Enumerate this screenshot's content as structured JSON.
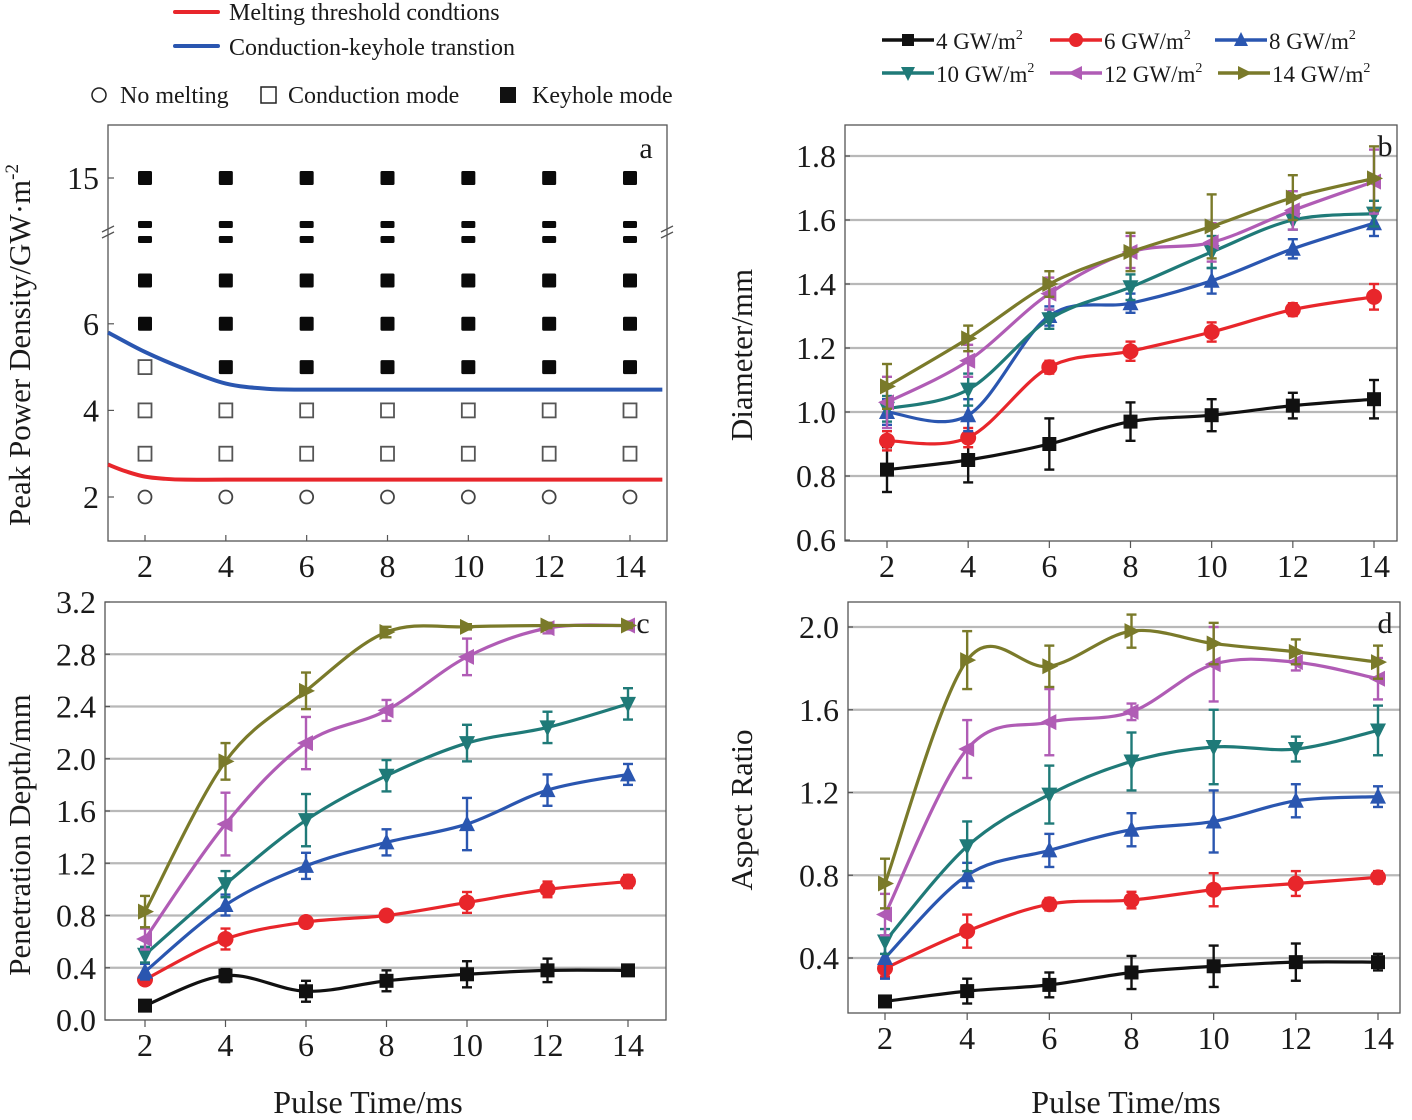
{
  "legend_top_left": {
    "lines": [
      {
        "label": "Melting threshold condtions",
        "color": "#e8262b"
      },
      {
        "label": "Conduction-keyhole transtion",
        "color": "#2a56b0"
      }
    ],
    "markers": [
      {
        "label": "No melting",
        "symbol": "open-circle"
      },
      {
        "label": "Conduction mode",
        "symbol": "open-square"
      },
      {
        "label": "Keyhole mode",
        "symbol": "filled-square"
      }
    ]
  },
  "legend_top_right": {
    "entries": [
      {
        "label": "4 GW/m",
        "sup": "2",
        "color": "#111111",
        "symbol": "square"
      },
      {
        "label": "6 GW/m",
        "sup": "2",
        "color": "#e8262b",
        "symbol": "circle"
      },
      {
        "label": "8 GW/m",
        "sup": "2",
        "color": "#2a56b0",
        "symbol": "triangle-up"
      },
      {
        "label": "10 GW/m",
        "sup": "2",
        "color": "#1f7a78",
        "symbol": "triangle-down"
      },
      {
        "label": "12 GW/m",
        "sup": "2",
        "color": "#b05cb5",
        "symbol": "triangle-left"
      },
      {
        "label": "14 GW/m",
        "sup": "2",
        "color": "#7a7a2a",
        "symbol": "triangle-right"
      }
    ]
  },
  "chart_data": [
    {
      "id": "a",
      "panel_label": "a",
      "type": "scatter",
      "title": "",
      "xlabel": "",
      "ylabel": "Peak Power Density/GW·m",
      "ylabel_sup": "-2",
      "x_ticks": [
        2,
        4,
        6,
        8,
        10,
        12,
        14
      ],
      "y_ticks": [
        2,
        4,
        6,
        15
      ],
      "y_axis_break": true,
      "xlim": [
        1,
        14.8
      ],
      "grid": false,
      "points": {
        "x": [
          2,
          4,
          6,
          8,
          10,
          12,
          14
        ],
        "rows": [
          {
            "y": 2,
            "modes": [
              "none",
              "none",
              "none",
              "none",
              "none",
              "none",
              "none"
            ]
          },
          {
            "y": 3,
            "modes": [
              "conduction",
              "conduction",
              "conduction",
              "conduction",
              "conduction",
              "conduction",
              "conduction"
            ]
          },
          {
            "y": 4,
            "modes": [
              "conduction",
              "conduction",
              "conduction",
              "conduction",
              "conduction",
              "conduction",
              "conduction"
            ]
          },
          {
            "y": 5,
            "modes": [
              "conduction",
              "keyhole",
              "keyhole",
              "keyhole",
              "keyhole",
              "keyhole",
              "keyhole"
            ]
          },
          {
            "y": 6,
            "modes": [
              "keyhole",
              "keyhole",
              "keyhole",
              "keyhole",
              "keyhole",
              "keyhole",
              "keyhole"
            ]
          },
          {
            "y": 7,
            "modes": [
              "keyhole",
              "keyhole",
              "keyhole",
              "keyhole",
              "keyhole",
              "keyhole",
              "keyhole"
            ]
          },
          {
            "y": 8,
            "modes": [
              "keyhole-pair",
              "keyhole-pair",
              "keyhole-pair",
              "keyhole-pair",
              "keyhole-pair",
              "keyhole-pair",
              "keyhole-pair"
            ]
          },
          {
            "y": 15,
            "modes": [
              "keyhole",
              "keyhole",
              "keyhole",
              "keyhole",
              "keyhole",
              "keyhole",
              "keyhole"
            ]
          }
        ]
      },
      "curves": [
        {
          "name": "Melting threshold condtions",
          "color": "#e8262b",
          "x": [
            1,
            1.5,
            2,
            2.5,
            3,
            4,
            6,
            8,
            10,
            12,
            14.8
          ],
          "y": [
            2.75,
            2.6,
            2.47,
            2.42,
            2.4,
            2.4,
            2.4,
            2.4,
            2.4,
            2.4,
            2.4
          ]
        },
        {
          "name": "Conduction-keyhole transtion",
          "color": "#2a56b0",
          "x": [
            1,
            2,
            3,
            4,
            5,
            6,
            8,
            10,
            12,
            14.8
          ],
          "y": [
            5.8,
            5.35,
            4.95,
            4.62,
            4.5,
            4.48,
            4.48,
            4.48,
            4.48,
            4.48
          ]
        }
      ]
    },
    {
      "id": "b",
      "panel_label": "b",
      "type": "line",
      "title": "",
      "xlabel": "",
      "ylabel": "Diameter/mm",
      "x": [
        2,
        4,
        6,
        8,
        10,
        12,
        14
      ],
      "x_ticks": [
        2,
        4,
        6,
        8,
        10,
        12,
        14
      ],
      "y_ticks": [
        0.6,
        0.8,
        1.0,
        1.2,
        1.4,
        1.6,
        1.8
      ],
      "ylim": [
        0.6,
        1.9
      ],
      "grid": true,
      "series": [
        {
          "name": "4 GW/m2",
          "values": [
            0.82,
            0.85,
            0.9,
            0.97,
            0.99,
            1.02,
            1.04
          ],
          "err": [
            0.07,
            0.07,
            0.08,
            0.06,
            0.05,
            0.04,
            0.06
          ]
        },
        {
          "name": "6 GW/m2",
          "values": [
            0.91,
            0.92,
            1.14,
            1.19,
            1.25,
            1.32,
            1.36
          ],
          "err": [
            0.03,
            0.03,
            0.02,
            0.03,
            0.03,
            0.02,
            0.04
          ]
        },
        {
          "name": "8 GW/m2",
          "values": [
            1.0,
            0.99,
            1.3,
            1.34,
            1.41,
            1.51,
            1.59
          ],
          "err": [
            0.04,
            0.05,
            0.03,
            0.03,
            0.04,
            0.03,
            0.04
          ]
        },
        {
          "name": "10 GW/m2",
          "values": [
            1.01,
            1.07,
            1.29,
            1.39,
            1.5,
            1.6,
            1.62
          ],
          "err": [
            0.04,
            0.05,
            0.03,
            0.04,
            0.05,
            0.03,
            0.04
          ]
        },
        {
          "name": "12 GW/m2",
          "values": [
            1.03,
            1.16,
            1.37,
            1.5,
            1.53,
            1.63,
            1.72
          ],
          "err": [
            0.08,
            0.05,
            0.05,
            0.05,
            0.06,
            0.06,
            0.1
          ]
        },
        {
          "name": "14 GW/m2",
          "values": [
            1.08,
            1.23,
            1.4,
            1.5,
            1.58,
            1.67,
            1.73
          ],
          "err": [
            0.07,
            0.04,
            0.04,
            0.06,
            0.1,
            0.07,
            0.1
          ]
        }
      ]
    },
    {
      "id": "c",
      "panel_label": "c",
      "type": "line",
      "title": "",
      "xlabel": "Pulse Time/ms",
      "ylabel": "Penetration Depth/mm",
      "x": [
        2,
        4,
        6,
        8,
        10,
        12,
        14
      ],
      "x_ticks": [
        2,
        4,
        6,
        8,
        10,
        12,
        14
      ],
      "y_ticks": [
        0.0,
        0.4,
        0.8,
        1.2,
        1.6,
        2.0,
        2.4,
        2.8,
        3.2
      ],
      "ylim": [
        0.0,
        3.2
      ],
      "grid": true,
      "series": [
        {
          "name": "4 GW/m2",
          "values": [
            0.11,
            0.34,
            0.22,
            0.3,
            0.35,
            0.38,
            0.38
          ],
          "err": [
            0.04,
            0.05,
            0.08,
            0.08,
            0.1,
            0.09,
            0.04
          ]
        },
        {
          "name": "6 GW/m2",
          "values": [
            0.31,
            0.62,
            0.75,
            0.8,
            0.9,
            1.0,
            1.06
          ],
          "err": [
            0.04,
            0.08,
            0.04,
            0.04,
            0.08,
            0.06,
            0.05
          ]
        },
        {
          "name": "8 GW/m2",
          "values": [
            0.37,
            0.88,
            1.18,
            1.36,
            1.5,
            1.76,
            1.88
          ],
          "err": [
            0.06,
            0.08,
            0.1,
            0.1,
            0.2,
            0.12,
            0.08
          ]
        },
        {
          "name": "10 GW/m2",
          "values": [
            0.5,
            1.04,
            1.53,
            1.87,
            2.12,
            2.24,
            2.42
          ],
          "err": [
            0.06,
            0.1,
            0.2,
            0.12,
            0.14,
            0.12,
            0.12
          ]
        },
        {
          "name": "12 GW/m2",
          "values": [
            0.62,
            1.5,
            2.12,
            2.37,
            2.78,
            3.0,
            3.02
          ],
          "err": [
            0.08,
            0.24,
            0.2,
            0.08,
            0.14,
            0.04,
            0.03
          ]
        },
        {
          "name": "14 GW/m2",
          "values": [
            0.83,
            1.98,
            2.52,
            2.97,
            3.01,
            3.02,
            3.02
          ],
          "err": [
            0.12,
            0.14,
            0.14,
            0.04,
            0.02,
            0.02,
            0.02
          ]
        }
      ]
    },
    {
      "id": "d",
      "panel_label": "d",
      "type": "line",
      "title": "",
      "xlabel": "Pulse Time/ms",
      "ylabel": "Aspect Ratio",
      "x": [
        2,
        4,
        6,
        8,
        10,
        12,
        14
      ],
      "x_ticks": [
        2,
        4,
        6,
        8,
        10,
        12,
        14
      ],
      "y_ticks": [
        0.4,
        0.8,
        1.2,
        1.6,
        2.0
      ],
      "ylim": [
        0.1,
        2.12
      ],
      "grid": true,
      "series": [
        {
          "name": "4 GW/m2",
          "values": [
            0.19,
            0.24,
            0.27,
            0.33,
            0.36,
            0.38,
            0.38
          ],
          "err": [
            0.02,
            0.06,
            0.06,
            0.08,
            0.1,
            0.09,
            0.04
          ]
        },
        {
          "name": "6 GW/m2",
          "values": [
            0.35,
            0.53,
            0.66,
            0.68,
            0.73,
            0.76,
            0.79
          ],
          "err": [
            0.04,
            0.08,
            0.03,
            0.04,
            0.08,
            0.06,
            0.03
          ]
        },
        {
          "name": "8 GW/m2",
          "values": [
            0.4,
            0.8,
            0.92,
            1.02,
            1.06,
            1.16,
            1.18
          ],
          "err": [
            0.1,
            0.06,
            0.08,
            0.08,
            0.15,
            0.08,
            0.05
          ]
        },
        {
          "name": "10 GW/m2",
          "values": [
            0.48,
            0.94,
            1.19,
            1.35,
            1.42,
            1.41,
            1.5
          ],
          "err": [
            0.06,
            0.12,
            0.14,
            0.14,
            0.18,
            0.06,
            0.12
          ]
        },
        {
          "name": "12 GW/m2",
          "values": [
            0.61,
            1.41,
            1.54,
            1.59,
            1.82,
            1.83,
            1.75
          ],
          "err": [
            0.1,
            0.14,
            0.16,
            0.04,
            0.18,
            0.04,
            0.1
          ]
        },
        {
          "name": "14 GW/m2",
          "values": [
            0.76,
            1.84,
            1.81,
            1.98,
            1.92,
            1.88,
            1.83
          ],
          "err": [
            0.12,
            0.14,
            0.1,
            0.08,
            0.1,
            0.06,
            0.08
          ]
        }
      ]
    }
  ]
}
